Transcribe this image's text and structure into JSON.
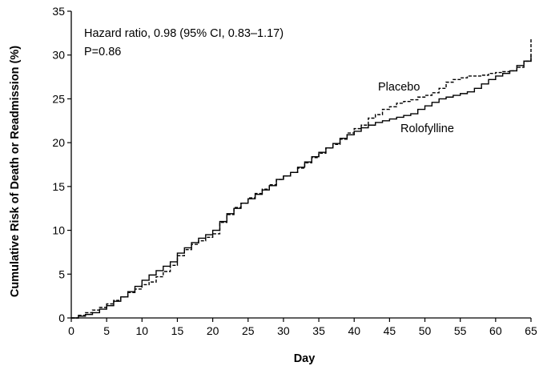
{
  "chart_data": {
    "type": "line",
    "title": "",
    "xlabel": "Day",
    "ylabel": "Cumulative Risk of Death or Readmission (%)",
    "xlim": [
      0,
      65
    ],
    "ylim": [
      0,
      35
    ],
    "xticks": [
      0,
      5,
      10,
      15,
      20,
      25,
      30,
      35,
      40,
      45,
      50,
      55,
      60,
      65
    ],
    "yticks": [
      0,
      5,
      10,
      15,
      20,
      25,
      30,
      35
    ],
    "grid": false,
    "annotations": [
      "Hazard ratio, 0.98 (95% CI, 0.83–1.17)",
      "P=0.86"
    ],
    "series": [
      {
        "name": "Placebo",
        "style": "dashed",
        "color": "#000000",
        "x": [
          0,
          1,
          2,
          3,
          4,
          5,
          6,
          7,
          8,
          9,
          10,
          11,
          12,
          13,
          14,
          15,
          16,
          17,
          18,
          19,
          20,
          21,
          22,
          23,
          24,
          25,
          26,
          27,
          28,
          29,
          30,
          31,
          32,
          33,
          34,
          35,
          36,
          37,
          38,
          39,
          40,
          41,
          42,
          43,
          44,
          45,
          46,
          47,
          48,
          49,
          50,
          51,
          52,
          53,
          54,
          55,
          56,
          57,
          58,
          59,
          60,
          61,
          62,
          63,
          64,
          65
        ],
        "y": [
          0,
          0.3,
          0.6,
          0.9,
          1.2,
          1.6,
          2.0,
          2.4,
          2.9,
          3.3,
          3.8,
          4.1,
          4.7,
          5.3,
          6.0,
          7.1,
          7.8,
          8.4,
          8.8,
          9.2,
          9.6,
          10.9,
          11.8,
          12.6,
          13.1,
          13.7,
          14.2,
          14.7,
          15.2,
          15.8,
          16.2,
          16.6,
          17.1,
          17.7,
          18.3,
          18.8,
          19.4,
          19.8,
          20.4,
          21.1,
          21.6,
          22.0,
          22.8,
          23.2,
          23.8,
          24.1,
          24.5,
          24.7,
          24.9,
          25.2,
          25.4,
          25.7,
          26.2,
          26.9,
          27.2,
          27.4,
          27.6,
          27.6,
          27.7,
          27.9,
          28.0,
          28.1,
          28.2,
          28.6,
          29.3,
          31.8
        ]
      },
      {
        "name": "Rolofylline",
        "style": "solid",
        "color": "#000000",
        "x": [
          0,
          1,
          2,
          3,
          4,
          5,
          6,
          7,
          8,
          9,
          10,
          11,
          12,
          13,
          14,
          15,
          16,
          17,
          18,
          19,
          20,
          21,
          22,
          23,
          24,
          25,
          26,
          27,
          28,
          29,
          30,
          31,
          32,
          33,
          34,
          35,
          36,
          37,
          38,
          39,
          40,
          41,
          42,
          43,
          44,
          45,
          46,
          47,
          48,
          49,
          50,
          51,
          52,
          53,
          54,
          55,
          56,
          57,
          58,
          59,
          60,
          61,
          62,
          63,
          64,
          65
        ],
        "y": [
          0,
          0.2,
          0.4,
          0.6,
          1.0,
          1.4,
          1.9,
          2.4,
          3.0,
          3.6,
          4.3,
          4.9,
          5.4,
          5.9,
          6.4,
          7.4,
          8.0,
          8.6,
          9.1,
          9.5,
          10.0,
          11.0,
          11.9,
          12.5,
          13.1,
          13.6,
          14.1,
          14.6,
          15.1,
          15.8,
          16.2,
          16.6,
          17.2,
          17.8,
          18.4,
          18.9,
          19.4,
          19.9,
          20.5,
          20.9,
          21.3,
          21.7,
          22.0,
          22.3,
          22.5,
          22.7,
          22.9,
          23.1,
          23.3,
          23.8,
          24.2,
          24.6,
          25.0,
          25.2,
          25.4,
          25.6,
          25.8,
          26.2,
          26.7,
          27.2,
          27.6,
          27.9,
          28.2,
          28.8,
          29.3,
          30.0
        ]
      }
    ]
  }
}
